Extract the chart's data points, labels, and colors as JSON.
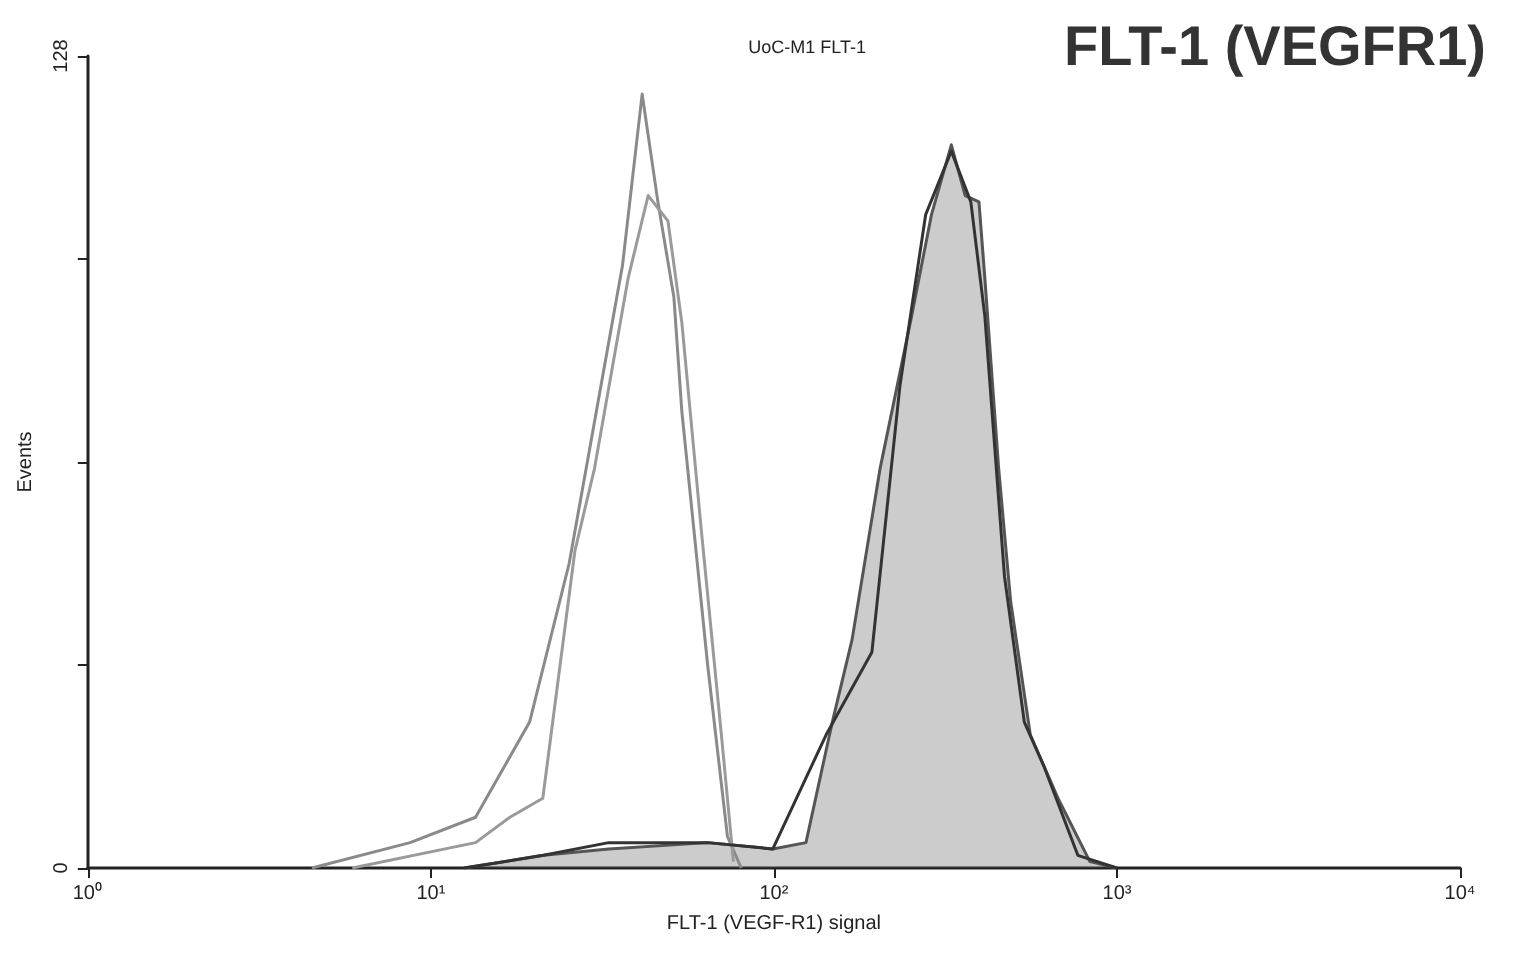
{
  "chart_data": {
    "type": "line",
    "title": "FLT-1 (VEGFR1)",
    "subtitle": "UoC-M1 FLT-1",
    "xlabel": "FLT-1 (VEGF-R1) signal",
    "ylabel": "Events",
    "log": "x",
    "xlim": [
      1,
      10000
    ],
    "xticks": [
      {
        "value": 1,
        "label": "10⁰"
      },
      {
        "value": 10,
        "label": "10¹"
      },
      {
        "value": 100,
        "label": "10²"
      },
      {
        "value": 1000,
        "label": "10³"
      },
      {
        "value": 10000,
        "label": "10⁴"
      }
    ],
    "ylim": [
      0,
      128
    ],
    "yticks": [
      0,
      {
        "value": 32,
        "label": null
      },
      {
        "value": 64,
        "label": null
      },
      {
        "value": 96,
        "label": null
      },
      128
    ],
    "grid": false,
    "marker": "none",
    "line_style": "solid",
    "series": [
      {
        "color": "#8a8a8a",
        "x": [
          4.5,
          8.7,
          13.5,
          19.4,
          25.3,
          28.8,
          36.2,
          41.3,
          45.9,
          51.1,
          53.9,
          64.1,
          73.2,
          80.3
        ],
        "values": [
          0,
          4,
          8,
          23,
          48,
          65,
          95,
          122,
          105,
          90,
          72,
          32,
          5,
          0
        ]
      },
      {
        "color": "#9a9a9a",
        "x": [
          5.9,
          13.5,
          17.0,
          21.2,
          26.3,
          30.0,
          37.6,
          43.0,
          49.1,
          53.9,
          61.5,
          70.3,
          76.2
        ],
        "values": [
          0,
          4,
          8,
          11,
          50,
          63,
          93,
          106,
          102,
          86,
          53,
          21,
          1
        ]
      },
      {
        "type": "area",
        "color": "#555555",
        "x": [
          12.5,
          21.3,
          33.0,
          64.1,
          99.3,
          124,
          148,
          169,
          204,
          252,
          288,
          329,
          361,
          396,
          412,
          452,
          490,
          559,
          673,
          834,
          1000
        ],
        "values": [
          0,
          2,
          3,
          4,
          3,
          4,
          23,
          36,
          63,
          87,
          103,
          114,
          106,
          105,
          93,
          63,
          42,
          21,
          11,
          1,
          0
        ]
      },
      {
        "color": "#333333",
        "x": [
          12.5,
          21.3,
          33.0,
          64.1,
          99.3,
          142,
          193,
          233,
          277,
          329,
          375,
          412,
          470,
          537,
          613,
          769,
          1000
        ],
        "values": [
          0,
          2,
          4,
          4,
          3,
          21,
          34,
          76,
          103,
          113,
          105,
          87,
          46,
          23,
          16,
          2,
          0
        ]
      }
    ]
  }
}
